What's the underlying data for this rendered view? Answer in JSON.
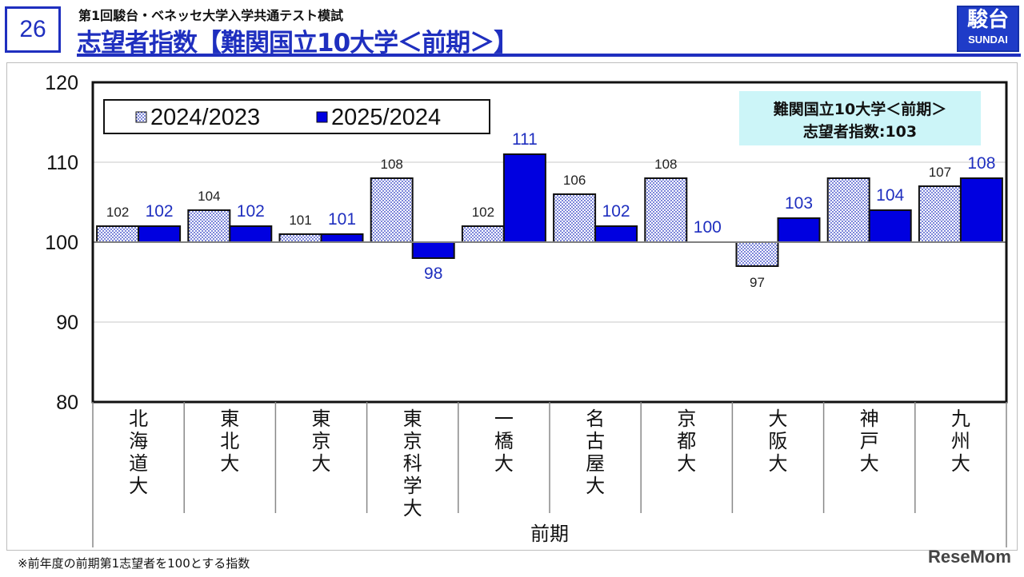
{
  "header": {
    "page_number": "26",
    "subtitle": "第1回駿台・ベネッセ大学入学共通テスト模試",
    "title": "志望者指数【難関国立10大学＜前期＞】",
    "logo_kanji": "駿台",
    "logo_latin": "SUNDAI"
  },
  "footnote": "※前年度の前期第1志望者を100とする指数",
  "watermark": "ReseMom",
  "colors": {
    "accent": "#1f2fbf",
    "series_2025": "#0000e0",
    "series_2024_dots": "#1f2fbf",
    "info_box": "#ccf5f8"
  },
  "chart_data": {
    "type": "bar",
    "baseline": 100,
    "ylim": [
      80,
      120
    ],
    "yticks": [
      80,
      90,
      100,
      110,
      120
    ],
    "categories": [
      "北海道大",
      "東北大",
      "東京大",
      "東京科学大",
      "一橋大",
      "名古屋大",
      "京都大",
      "大阪大",
      "神戸大",
      "九州大"
    ],
    "series": [
      {
        "name": "2024/2023",
        "values": [
          102,
          104,
          101,
          108,
          102,
          106,
          108,
          97,
          108,
          107
        ],
        "show_labels": [
          true,
          true,
          true,
          true,
          true,
          true,
          true,
          true,
          false,
          true
        ],
        "pattern": "dotted"
      },
      {
        "name": "2025/2024",
        "values": [
          102,
          102,
          101,
          98,
          111,
          102,
          100,
          103,
          104,
          108
        ],
        "show_labels": [
          true,
          true,
          true,
          true,
          true,
          true,
          true,
          true,
          true,
          true
        ],
        "pattern": "solid"
      }
    ],
    "xlabel": "前期",
    "ylabel": "",
    "grid": true,
    "legend": "top-left",
    "info_box": {
      "line1": "難関国立10大学＜前期＞",
      "line2": "志望者指数:103"
    }
  }
}
